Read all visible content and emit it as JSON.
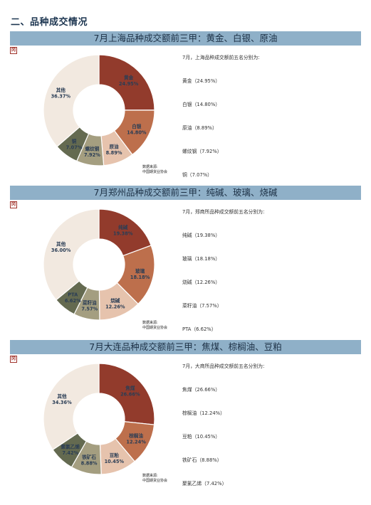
{
  "section_title": "二、品种成交情况",
  "source_line1": "数据来源:",
  "source_line2": "中国期货业协会",
  "corner_mark": "冈",
  "panels": [
    {
      "title": "7月上海品种成交额前三甲：黄金、白银、原油",
      "intro": "7月，上海品种成交额前五名分别为:",
      "items": [
        "黄金（24.95%）",
        "白银（14.80%）",
        "原油（8.89%）",
        "螺纹钢（7.92%）",
        "铜（7.07%）"
      ],
      "chart_data": {
        "type": "pie",
        "categories": [
          "黄金",
          "白银",
          "原油",
          "螺纹钢",
          "铜",
          "其他"
        ],
        "values": [
          24.95,
          14.8,
          8.89,
          7.92,
          7.07,
          36.37
        ],
        "labels": [
          "24.95%",
          "14.80%",
          "8.89%",
          "7.92%",
          "7.07%",
          "36.37%"
        ],
        "colors": [
          "#923b2c",
          "#bd6f4c",
          "#e6c3ad",
          "#a49e80",
          "#646a50",
          "#f2e9e0"
        ]
      }
    },
    {
      "title": "7月郑州品种成交额前三甲：纯碱、玻璃、烧碱",
      "intro": "7月，郑商所品种成交额前五名分别为:",
      "items": [
        "纯碱（19.38%）",
        "玻璃（18.18%）",
        "烧碱（12.26%）",
        "菜籽油（7.57%）",
        "PTA（6.62%）"
      ],
      "chart_data": {
        "type": "pie",
        "categories": [
          "纯碱",
          "玻璃",
          "烧碱",
          "菜籽油",
          "PTA",
          "其他"
        ],
        "values": [
          19.38,
          18.18,
          12.26,
          7.57,
          6.62,
          36.0
        ],
        "labels": [
          "19.38%",
          "18.18%",
          "12.26%",
          "7.57%",
          "6.62%",
          "36.00%"
        ],
        "colors": [
          "#923b2c",
          "#bd6f4c",
          "#e6c3ad",
          "#a49e80",
          "#646a50",
          "#f2e9e0"
        ]
      }
    },
    {
      "title": "7月大连品种成交额前三甲：焦煤、棕榈油、豆粕",
      "intro": "7月，大商所品种成交额前五名分别为:",
      "items": [
        "焦煤（26.66%）",
        "棕榈油（12.24%）",
        "豆粕（10.45%）",
        "铁矿石（8.88%）",
        "聚氯乙烯（7.42%）"
      ],
      "chart_data": {
        "type": "pie",
        "categories": [
          "焦煤",
          "棕榈油",
          "豆粕",
          "铁矿石",
          "聚氯乙烯",
          "其他"
        ],
        "values": [
          26.66,
          12.24,
          10.45,
          8.88,
          7.42,
          34.36
        ],
        "labels": [
          "26.66%",
          "12.24%",
          "10.45%",
          "8.88%",
          "7.42%",
          "34.36%"
        ],
        "colors": [
          "#923b2c",
          "#bd6f4c",
          "#e6c3ad",
          "#a49e80",
          "#646a50",
          "#f2e9e0"
        ]
      }
    }
  ]
}
